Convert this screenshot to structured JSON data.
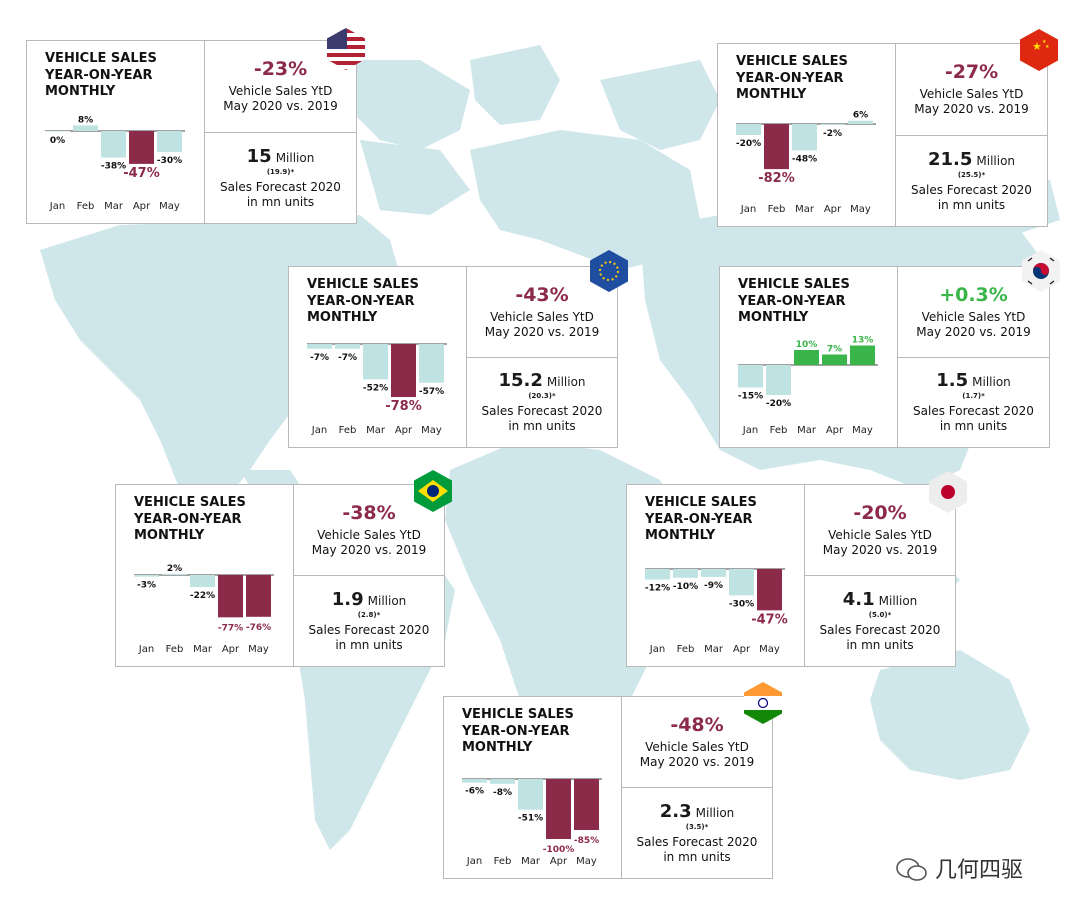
{
  "colors": {
    "accent": "#8c2a4a",
    "positive": "#3ab54a",
    "bar_light": "#bfe3e3",
    "map": "#cfe6ea"
  },
  "watermark": "几何四驱",
  "chart_data": [
    {
      "id": "us",
      "flag_icon": "usa-flag-icon",
      "type": "bar",
      "title": "VEHICLE SALES YEAR-ON-YEAR MONTHLY",
      "categories": [
        "Jan",
        "Feb",
        "Mar",
        "Apr",
        "May"
      ],
      "values": [
        0,
        8,
        -38,
        -47,
        -30
      ],
      "value_labels": [
        "0%",
        "8%",
        "-38%",
        "-47%",
        "-30%"
      ],
      "highlight": [
        3
      ],
      "ytd": "-23%",
      "ytd_label_1": "Vehicle Sales YtD",
      "ytd_label_2": "May 2020 vs. 2019",
      "forecast_value": "15",
      "forecast_unit": "Million",
      "forecast_prev": "(19.9)*",
      "forecast_label_1": "Sales Forecast 2020",
      "forecast_label_2": "in mn units"
    },
    {
      "id": "china",
      "flag_icon": "china-flag-icon",
      "type": "bar",
      "title": "VEHICLE SALES YEAR-ON-YEAR MONTHLY",
      "categories": [
        "Jan",
        "Feb",
        "Mar",
        "Apr",
        "May"
      ],
      "values": [
        -20,
        -82,
        -48,
        -2,
        6
      ],
      "value_labels": [
        "-20%",
        "-82%",
        "-48%",
        "-2%",
        "6%"
      ],
      "highlight": [
        1
      ],
      "ytd": "-27%",
      "ytd_label_1": "Vehicle Sales YtD",
      "ytd_label_2": "May 2020 vs. 2019",
      "forecast_value": "21.5",
      "forecast_unit": "Million",
      "forecast_prev": "(25.5)*",
      "forecast_label_1": "Sales Forecast 2020",
      "forecast_label_2": "in mn units"
    },
    {
      "id": "eu",
      "flag_icon": "eu-flag-icon",
      "type": "bar",
      "title": "VEHICLE SALES YEAR-ON-YEAR MONTHLY",
      "categories": [
        "Jan",
        "Feb",
        "Mar",
        "Apr",
        "May"
      ],
      "values": [
        -7,
        -7,
        -52,
        -78,
        -57
      ],
      "value_labels": [
        "-7%",
        "-7%",
        "-52%",
        "-78%",
        "-57%"
      ],
      "highlight": [
        3
      ],
      "ytd": "-43%",
      "ytd_label_1": "Vehicle Sales YtD",
      "ytd_label_2": "May 2020 vs. 2019",
      "forecast_value": "15.2",
      "forecast_unit": "Million",
      "forecast_prev": "(20.3)*",
      "forecast_label_1": "Sales Forecast 2020",
      "forecast_label_2": "in mn units"
    },
    {
      "id": "korea",
      "flag_icon": "south-korea-flag-icon",
      "type": "bar",
      "title": "VEHICLE SALES YEAR-ON-YEAR MONTHLY",
      "categories": [
        "Jan",
        "Feb",
        "Mar",
        "Apr",
        "May"
      ],
      "values": [
        -15,
        -20,
        10,
        7,
        13
      ],
      "value_labels": [
        "-15%",
        "-20%",
        "10%",
        "7%",
        "13%"
      ],
      "highlight": [],
      "positive_color": true,
      "ytd": "+0.3%",
      "ytd_positive": true,
      "ytd_label_1": "Vehicle Sales YtD",
      "ytd_label_2": "May 2020 vs. 2019",
      "forecast_value": "1.5",
      "forecast_unit": "Million",
      "forecast_prev": "(1.7)*",
      "forecast_label_1": "Sales Forecast 2020",
      "forecast_label_2": "in mn units"
    },
    {
      "id": "brazil",
      "flag_icon": "brazil-flag-icon",
      "type": "bar",
      "title": "VEHICLE SALES YEAR-ON-YEAR MONTHLY",
      "categories": [
        "Jan",
        "Feb",
        "Mar",
        "Apr",
        "May"
      ],
      "values": [
        -3,
        2,
        -22,
        -77,
        -76
      ],
      "value_labels": [
        "-3%",
        "2%",
        "-22%",
        "-77%",
        "-76%"
      ],
      "highlight": [
        3,
        4
      ],
      "ytd": "-38%",
      "ytd_label_1": "Vehicle Sales YtD",
      "ytd_label_2": "May 2020 vs. 2019",
      "forecast_value": "1.9",
      "forecast_unit": "Million",
      "forecast_prev": "(2.8)*",
      "forecast_label_1": "Sales Forecast 2020",
      "forecast_label_2": "in mn units"
    },
    {
      "id": "japan",
      "flag_icon": "japan-flag-icon",
      "type": "bar",
      "title": "VEHICLE SALES YEAR-ON-YEAR MONTHLY",
      "categories": [
        "Jan",
        "Feb",
        "Mar",
        "Apr",
        "May"
      ],
      "values": [
        -12,
        -10,
        -9,
        -30,
        -47
      ],
      "value_labels": [
        "-12%",
        "-10%",
        "-9%",
        "-30%",
        "-47%"
      ],
      "highlight": [
        4
      ],
      "ytd": "-20%",
      "ytd_label_1": "Vehicle Sales YtD",
      "ytd_label_2": "May 2020 vs. 2019",
      "forecast_value": "4.1",
      "forecast_unit": "Million",
      "forecast_prev": "(5.0)*",
      "forecast_label_1": "Sales Forecast 2020",
      "forecast_label_2": "in mn units"
    },
    {
      "id": "india",
      "flag_icon": "india-flag-icon",
      "type": "bar",
      "title": "VEHICLE SALES YEAR-ON-YEAR MONTHLY",
      "categories": [
        "Jan",
        "Feb",
        "Mar",
        "Apr",
        "May"
      ],
      "values": [
        -6,
        -8,
        -51,
        -100,
        -85
      ],
      "value_labels": [
        "-6%",
        "-8%",
        "-51%",
        "-100%",
        "-85%"
      ],
      "highlight": [
        3,
        4
      ],
      "ytd": "-48%",
      "ytd_label_1": "Vehicle Sales YtD",
      "ytd_label_2": "May 2020 vs. 2019",
      "forecast_value": "2.3",
      "forecast_unit": "Million",
      "forecast_prev": "(3.5)*",
      "forecast_label_1": "Sales Forecast 2020",
      "forecast_label_2": "in mn units"
    }
  ]
}
